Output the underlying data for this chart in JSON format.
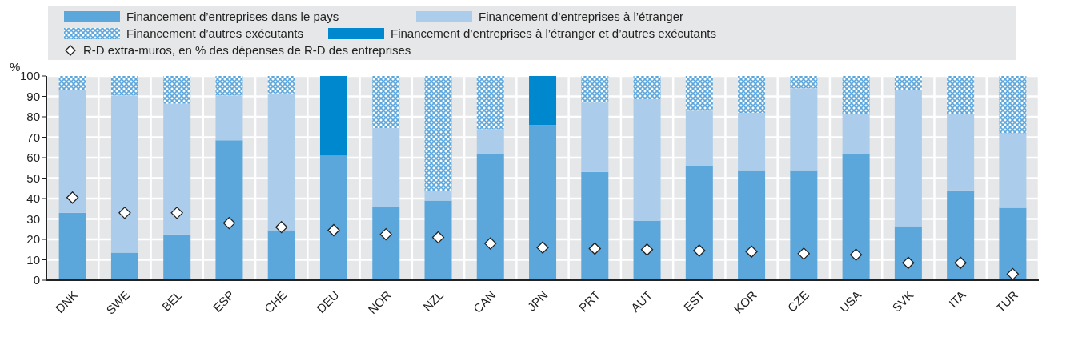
{
  "chart_data": {
    "type": "bar",
    "stacked": true,
    "ylabel": "%",
    "categories": [
      "DNK",
      "SWE",
      "BEL",
      "ESP",
      "CHE",
      "DEU",
      "NOR",
      "NZL",
      "CAN",
      "JPN",
      "PRT",
      "AUT",
      "EST",
      "KOR",
      "CZE",
      "USA",
      "SVK",
      "ITA",
      "TUR"
    ],
    "series": [
      {
        "name": "Financement d’entreprises dans le pays",
        "color": "#5ba7db",
        "values": [
          33,
          13.5,
          22.5,
          68.5,
          24.5,
          61,
          36,
          39,
          62,
          76,
          53,
          29,
          56,
          53.5,
          53.5,
          62,
          26.5,
          44,
          35.5
        ]
      },
      {
        "name": "Financement d’entreprises à l’étranger",
        "color": "#abcdeb",
        "values": [
          60,
          77,
          64,
          22,
          67,
          null,
          38.5,
          4.5,
          12,
          null,
          34,
          59.5,
          27,
          28.5,
          40.5,
          19.5,
          66.5,
          37.5,
          36.5
        ]
      },
      {
        "name": "Financement d’autres exécutants",
        "color": "#5ba7db",
        "values": [
          7,
          9.5,
          13.5,
          9.5,
          8.5,
          null,
          25.5,
          56.5,
          26,
          null,
          13,
          11.5,
          17,
          18,
          6,
          18.5,
          7,
          18.5,
          28
        ]
      },
      {
        "name": "Financement d’entreprises à l’étranger et d’autres exécutants",
        "color": "#0088cf",
        "values": [
          null,
          null,
          null,
          null,
          null,
          39,
          null,
          null,
          null,
          24,
          null,
          null,
          null,
          null,
          null,
          null,
          null,
          null,
          null
        ]
      },
      {
        "name": "R-D extra-muros, en % des dépenses de R-D des entreprises",
        "type": "scatter",
        "marker": "diamond",
        "color": "#ffffff",
        "values": [
          40.5,
          33,
          33,
          28,
          26,
          24.5,
          22.5,
          21,
          18,
          16,
          15.5,
          15,
          14.5,
          14,
          13,
          12.5,
          8.5,
          8.5,
          3
        ]
      }
    ],
    "ylim": [
      0,
      100
    ],
    "yticks": [
      0,
      10,
      20,
      30,
      40,
      50,
      60,
      70,
      80,
      90,
      100
    ],
    "grid": true,
    "legend": "top"
  }
}
